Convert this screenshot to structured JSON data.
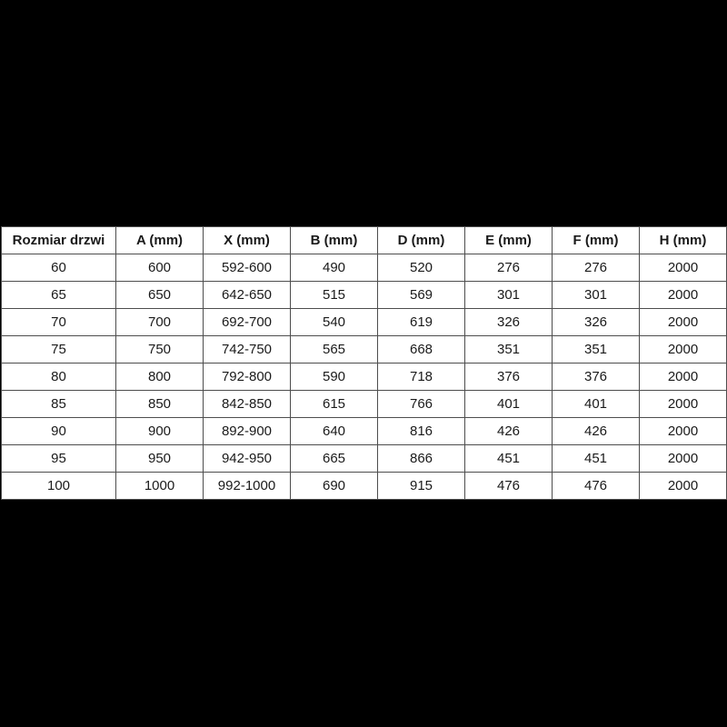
{
  "page": {
    "background_color": "#000000",
    "table_background_color": "#ffffff",
    "table_border_color": "#4d4d4d",
    "table_text_color": "#1a1a1a"
  },
  "table": {
    "columns": [
      "Rozmiar drzwi",
      "A (mm)",
      "X (mm)",
      "B (mm)",
      "D (mm)",
      "E (mm)",
      "F (mm)",
      "H (mm)"
    ],
    "rows": [
      [
        "60",
        "600",
        "592-600",
        "490",
        "520",
        "276",
        "276",
        "2000"
      ],
      [
        "65",
        "650",
        "642-650",
        "515",
        "569",
        "301",
        "301",
        "2000"
      ],
      [
        "70",
        "700",
        "692-700",
        "540",
        "619",
        "326",
        "326",
        "2000"
      ],
      [
        "75",
        "750",
        "742-750",
        "565",
        "668",
        "351",
        "351",
        "2000"
      ],
      [
        "80",
        "800",
        "792-800",
        "590",
        "718",
        "376",
        "376",
        "2000"
      ],
      [
        "85",
        "850",
        "842-850",
        "615",
        "766",
        "401",
        "401",
        "2000"
      ],
      [
        "90",
        "900",
        "892-900",
        "640",
        "816",
        "426",
        "426",
        "2000"
      ],
      [
        "95",
        "950",
        "942-950",
        "665",
        "866",
        "451",
        "451",
        "2000"
      ],
      [
        "100",
        "1000",
        "992-1000",
        "690",
        "915",
        "476",
        "476",
        "2000"
      ]
    ]
  }
}
